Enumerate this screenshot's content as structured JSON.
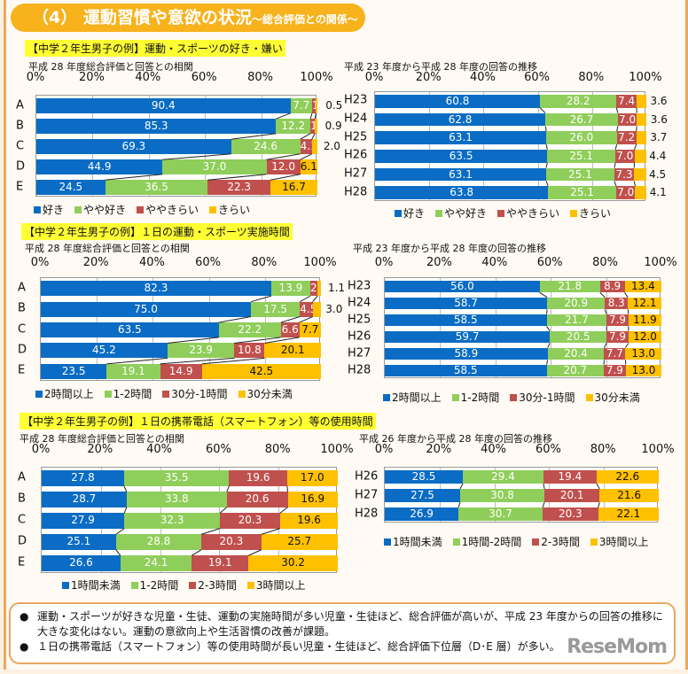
{
  "header": {
    "title_main": "（4） 運動習慣や意欲の状況",
    "title_sub": "～総合評価との関係～"
  },
  "colors": {
    "c1": "#0a6cc4",
    "c2": "#8fce5a",
    "c3": "#c0504d",
    "c4": "#ffc000"
  },
  "sections": [
    {
      "title": "【中学２年生男子の例】運動・スポーツの好き・嫌い"
    },
    {
      "title": "【中学２年生男子の例】１日の運動・スポーツ実施時間"
    },
    {
      "title": "【中学２年生男子の例】１日の携帯電話（スマートフォン）等の使用時間"
    }
  ],
  "chart_data": [
    {
      "type": "bar",
      "orientation": "horizontal",
      "stacked": true,
      "subtitle": "平成 28 年度総合評価と回答との相関",
      "tick_labels": [
        "0%",
        "20%",
        "40%",
        "60%",
        "80%",
        "100%"
      ],
      "xlim": [
        0,
        100
      ],
      "categories": [
        "A",
        "B",
        "C",
        "D",
        "E"
      ],
      "series": [
        {
          "name": "好き",
          "values": [
            90.4,
            85.3,
            69.3,
            44.9,
            24.5
          ]
        },
        {
          "name": "やや好き",
          "values": [
            7.7,
            12.2,
            24.6,
            37.0,
            36.5
          ]
        },
        {
          "name": "ややきらい",
          "values": [
            1.4,
            1.6,
            4.1,
            12.0,
            22.3
          ]
        },
        {
          "name": "きらい",
          "values": [
            0.5,
            0.9,
            2.0,
            6.1,
            16.7
          ]
        }
      ],
      "legend": "bottom",
      "grid": true
    },
    {
      "type": "bar",
      "orientation": "horizontal",
      "stacked": true,
      "subtitle": "平成 23 年度から平成 28 年度の回答の推移",
      "tick_labels": [
        "0%",
        "20%",
        "40%",
        "60%",
        "80%",
        "100%"
      ],
      "xlim": [
        0,
        100
      ],
      "categories": [
        "H23",
        "H24",
        "H25",
        "H26",
        "H27",
        "H28"
      ],
      "series": [
        {
          "name": "好き",
          "values": [
            60.8,
            62.8,
            63.1,
            63.5,
            63.1,
            63.8
          ]
        },
        {
          "name": "やや好き",
          "values": [
            28.2,
            26.7,
            26.0,
            25.1,
            25.1,
            25.1
          ]
        },
        {
          "name": "ややきらい",
          "values": [
            7.4,
            7.0,
            7.2,
            7.0,
            7.3,
            7.0
          ]
        },
        {
          "name": "きらい",
          "values": [
            3.6,
            3.6,
            3.7,
            4.4,
            4.5,
            4.1
          ]
        }
      ],
      "legend": "bottom",
      "grid": true
    },
    {
      "type": "bar",
      "orientation": "horizontal",
      "stacked": true,
      "subtitle": "平成 28 年度総合評価と回答との相関",
      "tick_labels": [
        "0%",
        "20%",
        "40%",
        "60%",
        "80%",
        "100%"
      ],
      "xlim": [
        0,
        100
      ],
      "categories": [
        "A",
        "B",
        "C",
        "D",
        "E"
      ],
      "series": [
        {
          "name": "2時間以上",
          "values": [
            82.3,
            75.0,
            63.5,
            45.2,
            23.5
          ]
        },
        {
          "name": "1-2時間",
          "values": [
            13.9,
            17.5,
            22.2,
            23.9,
            19.1
          ]
        },
        {
          "name": "30分-1時間",
          "values": [
            2.6,
            4.5,
            6.6,
            10.8,
            14.9
          ]
        },
        {
          "name": "30分未満",
          "values": [
            1.1,
            3.0,
            7.7,
            20.1,
            42.5
          ]
        }
      ],
      "legend": "bottom",
      "grid": true
    },
    {
      "type": "bar",
      "orientation": "horizontal",
      "stacked": true,
      "subtitle": "平成 23 年度から平成 28 年度の回答の推移",
      "tick_labels": [
        "0%",
        "20%",
        "40%",
        "60%",
        "80%",
        "100%"
      ],
      "xlim": [
        0,
        100
      ],
      "categories": [
        "H23",
        "H24",
        "H25",
        "H26",
        "H27",
        "H28"
      ],
      "series": [
        {
          "name": "2時間以上",
          "values": [
            56.0,
            58.7,
            58.5,
            59.7,
            58.9,
            58.5
          ]
        },
        {
          "name": "1-2時間",
          "values": [
            21.8,
            20.9,
            21.7,
            20.5,
            20.4,
            20.7
          ]
        },
        {
          "name": "30分-1時間",
          "values": [
            8.9,
            8.3,
            7.9,
            7.9,
            7.7,
            7.9
          ]
        },
        {
          "name": "30分未満",
          "values": [
            13.4,
            12.1,
            11.9,
            12.0,
            13.0,
            13.0
          ]
        }
      ],
      "legend": "bottom",
      "grid": true
    },
    {
      "type": "bar",
      "orientation": "horizontal",
      "stacked": true,
      "subtitle": "平成 28 年度総合評価と回答との相関",
      "tick_labels": [
        "0%",
        "20%",
        "40%",
        "60%",
        "80%",
        "100%"
      ],
      "xlim": [
        0,
        100
      ],
      "categories": [
        "A",
        "B",
        "C",
        "D",
        "E"
      ],
      "series": [
        {
          "name": "1時間未満",
          "values": [
            27.8,
            28.7,
            27.9,
            25.1,
            26.6
          ]
        },
        {
          "name": "1-2時間",
          "values": [
            35.5,
            33.8,
            32.3,
            28.8,
            24.1
          ]
        },
        {
          "name": "2-3時間",
          "values": [
            19.6,
            20.6,
            20.3,
            20.3,
            19.1
          ]
        },
        {
          "name": "3時間以上",
          "values": [
            17.0,
            16.9,
            19.6,
            25.7,
            30.2
          ]
        }
      ],
      "legend": "bottom",
      "grid": true
    },
    {
      "type": "bar",
      "orientation": "horizontal",
      "stacked": true,
      "subtitle": "平成 26 年度から平成 28 年度の回答の推移",
      "tick_labels": [
        "0%",
        "20%",
        "40%",
        "60%",
        "80%",
        "100%"
      ],
      "xlim": [
        0,
        100
      ],
      "categories": [
        "H26",
        "H27",
        "H28"
      ],
      "series": [
        {
          "name": "1時間未満",
          "values": [
            28.5,
            27.5,
            26.9
          ]
        },
        {
          "name": "1時間-2時間",
          "values": [
            29.4,
            30.8,
            30.7
          ]
        },
        {
          "name": "2-3時間",
          "values": [
            19.4,
            20.1,
            20.3
          ]
        },
        {
          "name": "3時間以上",
          "values": [
            22.6,
            21.6,
            22.1
          ]
        }
      ],
      "legend": "bottom",
      "grid": true
    }
  ],
  "notes": [
    {
      "bullet": "●",
      "text": "運動・スポーツが好きな児童・生徒、運動の実施時間が多い児童・生徒ほど、総合評価が高いが、平成 23 年度からの回答の推移に大きな変化はない。運動の意欲向上や生活習慣の改善が課題。"
    },
    {
      "bullet": "●",
      "text": "１日の携帯電話（スマートフォン）等の使用時間が長い児童・生徒ほど、総合評価下位層（D･E 層）が多い。"
    }
  ],
  "logo": "ReseMom"
}
